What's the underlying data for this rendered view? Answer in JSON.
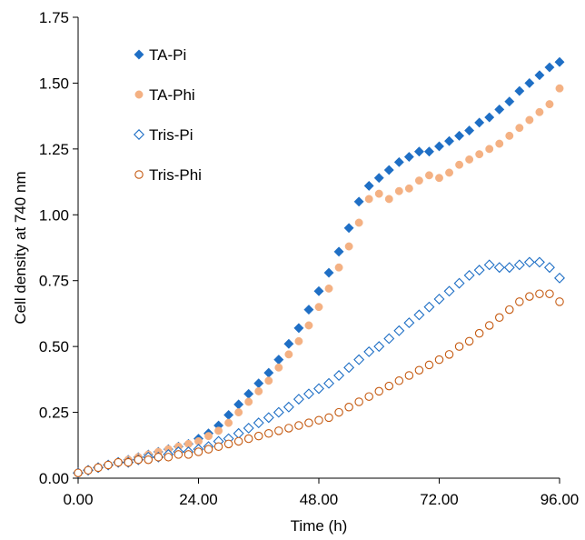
{
  "chart_data": {
    "type": "scatter",
    "title": "",
    "xlabel": "Time (h)",
    "ylabel": "Cell density at 740 nm",
    "xlim": [
      0,
      96
    ],
    "ylim": [
      0,
      1.75
    ],
    "x_ticks": [
      0,
      24,
      48,
      72,
      96
    ],
    "x_tick_labels": [
      "0.00",
      "24.00",
      "48.00",
      "72.00",
      "96.00"
    ],
    "y_ticks": [
      0,
      0.25,
      0.5,
      0.75,
      1.0,
      1.25,
      1.5,
      1.75
    ],
    "y_tick_labels": [
      "0.00",
      "0.25",
      "0.50",
      "0.75",
      "1.00",
      "1.25",
      "1.50",
      "1.75"
    ],
    "grid": false,
    "legend_position": "top-left",
    "x": [
      0,
      2,
      4,
      6,
      8,
      10,
      12,
      14,
      16,
      18,
      20,
      22,
      24,
      26,
      28,
      30,
      32,
      34,
      36,
      38,
      40,
      42,
      44,
      46,
      48,
      50,
      52,
      54,
      56,
      58,
      60,
      62,
      64,
      66,
      68,
      70,
      72,
      74,
      76,
      78,
      80,
      82,
      84,
      86,
      88,
      90,
      92,
      94,
      96
    ],
    "series": [
      {
        "name": "TA-Pi",
        "marker": "filled-diamond",
        "color": "#1f6fc5",
        "values": [
          0.02,
          0.03,
          0.04,
          0.05,
          0.06,
          0.07,
          0.08,
          0.09,
          0.1,
          0.11,
          0.12,
          0.13,
          0.15,
          0.17,
          0.2,
          0.24,
          0.28,
          0.32,
          0.36,
          0.4,
          0.45,
          0.51,
          0.57,
          0.64,
          0.71,
          0.78,
          0.86,
          0.95,
          1.05,
          1.11,
          1.14,
          1.17,
          1.2,
          1.22,
          1.24,
          1.24,
          1.26,
          1.28,
          1.3,
          1.32,
          1.35,
          1.37,
          1.4,
          1.43,
          1.47,
          1.5,
          1.53,
          1.56,
          1.58
        ]
      },
      {
        "name": "TA-Phi",
        "marker": "filled-circle",
        "color": "#f4b183",
        "values": [
          0.02,
          0.03,
          0.04,
          0.05,
          0.06,
          0.07,
          0.08,
          0.09,
          0.1,
          0.11,
          0.12,
          0.13,
          0.14,
          0.16,
          0.18,
          0.21,
          0.25,
          0.29,
          0.33,
          0.37,
          0.42,
          0.47,
          0.52,
          0.58,
          0.65,
          0.72,
          0.8,
          0.88,
          0.97,
          1.06,
          1.08,
          1.06,
          1.09,
          1.1,
          1.13,
          1.15,
          1.14,
          1.16,
          1.19,
          1.21,
          1.23,
          1.25,
          1.27,
          1.3,
          1.33,
          1.36,
          1.39,
          1.42,
          1.48
        ]
      },
      {
        "name": "Tris-Pi",
        "marker": "open-diamond",
        "color": "#1f6fc5",
        "values": [
          0.02,
          0.03,
          0.04,
          0.05,
          0.06,
          0.06,
          0.07,
          0.08,
          0.08,
          0.09,
          0.1,
          0.1,
          0.11,
          0.12,
          0.14,
          0.15,
          0.17,
          0.19,
          0.21,
          0.23,
          0.25,
          0.27,
          0.3,
          0.32,
          0.34,
          0.36,
          0.39,
          0.42,
          0.45,
          0.48,
          0.5,
          0.53,
          0.56,
          0.59,
          0.62,
          0.65,
          0.68,
          0.71,
          0.74,
          0.77,
          0.79,
          0.81,
          0.8,
          0.8,
          0.81,
          0.82,
          0.82,
          0.8,
          0.76
        ]
      },
      {
        "name": "Tris-Phi",
        "marker": "open-circle",
        "color": "#c55a11",
        "values": [
          0.02,
          0.03,
          0.04,
          0.05,
          0.06,
          0.06,
          0.07,
          0.07,
          0.08,
          0.08,
          0.09,
          0.09,
          0.1,
          0.11,
          0.12,
          0.13,
          0.14,
          0.15,
          0.16,
          0.17,
          0.18,
          0.19,
          0.2,
          0.21,
          0.22,
          0.23,
          0.25,
          0.27,
          0.29,
          0.31,
          0.33,
          0.35,
          0.37,
          0.39,
          0.41,
          0.43,
          0.45,
          0.47,
          0.5,
          0.52,
          0.55,
          0.58,
          0.61,
          0.64,
          0.67,
          0.69,
          0.7,
          0.7,
          0.67
        ]
      }
    ]
  }
}
